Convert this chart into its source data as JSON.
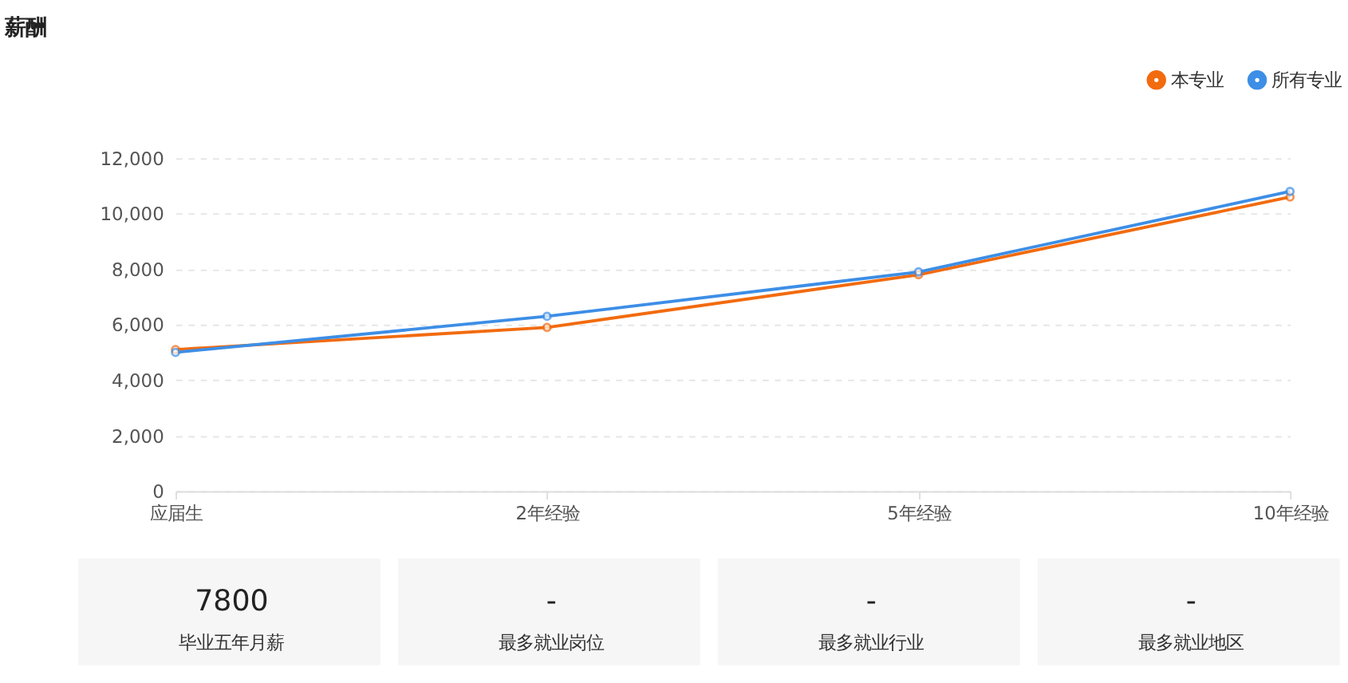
{
  "chart_data": [
    {
      "type": "line",
      "title": "薪酬",
      "categories": [
        "应届生",
        "2年经验",
        "5年经验",
        "10年经验"
      ],
      "series": [
        {
          "name": "本专业",
          "color": "#f26b0f",
          "values": [
            5100,
            5900,
            7800,
            10600
          ]
        },
        {
          "name": "所有专业",
          "color": "#3d8ee6",
          "values": [
            5000,
            6300,
            7900,
            10800
          ]
        }
      ],
      "ylim": [
        0,
        12000
      ],
      "yticks": [
        0,
        {
          "value": 2000,
          "label": "2,000"
        },
        {
          "value": 4000,
          "label": "4,000"
        },
        {
          "value": 6000,
          "label": "6,000"
        },
        {
          "value": 8000,
          "label": "8,000"
        },
        {
          "value": 10000,
          "label": "10,000"
        },
        {
          "value": 12000,
          "label": "12,000"
        }
      ],
      "grid": "y",
      "legend": "top right",
      "marker": "circle",
      "line_style": "solid"
    },
    {
      "type": "other",
      "annotations": [
        "7800",
        "毕业五年月薪",
        "-",
        "最多就业岗位",
        "-",
        "最多就业行业",
        "-",
        "最多就业地区"
      ]
    }
  ]
}
